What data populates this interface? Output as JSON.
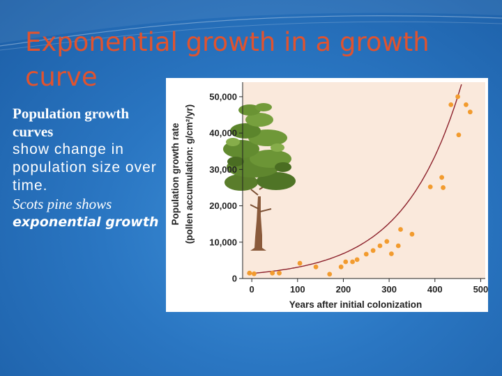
{
  "slide": {
    "title_line1": "Exponential growth in a growth",
    "title_line2": "curve",
    "bullet_heading": "Population growth curves",
    "bullet_body": "show change in population size over time.",
    "bullet_example": "Scots pine shows",
    "bullet_emphasis": "exponential growth"
  },
  "colors": {
    "title": "#e0532f",
    "plot_bg": "#fae9dc",
    "points": "#f29b2e",
    "curve": "#8b1f2a"
  },
  "chart_data": {
    "type": "scatter",
    "xlabel": "Years after initial colonization",
    "ylabel": "Population growth rate",
    "ylabel2": "(pollen accumulation: g/cm²/yr)",
    "xlim": [
      -20,
      510
    ],
    "ylim": [
      0,
      54000
    ],
    "xticks": [
      0,
      100,
      200,
      300,
      400,
      500
    ],
    "yticks": [
      0,
      10000,
      20000,
      30000,
      40000,
      50000
    ],
    "xtick_labels": [
      "0",
      "100",
      "200",
      "300",
      "400",
      "500"
    ],
    "ytick_labels": [
      "0",
      "10,000",
      "20,000",
      "30,000",
      "40,000",
      "50,000"
    ],
    "grid": false,
    "points": [
      {
        "x": -5,
        "y": 1500
      },
      {
        "x": 5,
        "y": 1300
      },
      {
        "x": 45,
        "y": 1500
      },
      {
        "x": 60,
        "y": 1500
      },
      {
        "x": 105,
        "y": 4200
      },
      {
        "x": 140,
        "y": 3200
      },
      {
        "x": 170,
        "y": 1200
      },
      {
        "x": 195,
        "y": 3200
      },
      {
        "x": 205,
        "y": 4600
      },
      {
        "x": 220,
        "y": 4600
      },
      {
        "x": 230,
        "y": 5200
      },
      {
        "x": 250,
        "y": 6700
      },
      {
        "x": 265,
        "y": 7700
      },
      {
        "x": 280,
        "y": 9000
      },
      {
        "x": 295,
        "y": 10200
      },
      {
        "x": 305,
        "y": 6800
      },
      {
        "x": 320,
        "y": 9000
      },
      {
        "x": 325,
        "y": 13500
      },
      {
        "x": 350,
        "y": 12200
      },
      {
        "x": 390,
        "y": 25200
      },
      {
        "x": 415,
        "y": 27800
      },
      {
        "x": 418,
        "y": 25000
      },
      {
        "x": 435,
        "y": 47800
      },
      {
        "x": 450,
        "y": 50000
      },
      {
        "x": 452,
        "y": 39500
      },
      {
        "x": 468,
        "y": 47800
      },
      {
        "x": 477,
        "y": 45800
      }
    ],
    "curve": {
      "type": "exponential",
      "a": 1400,
      "b": 0.00795
    }
  }
}
